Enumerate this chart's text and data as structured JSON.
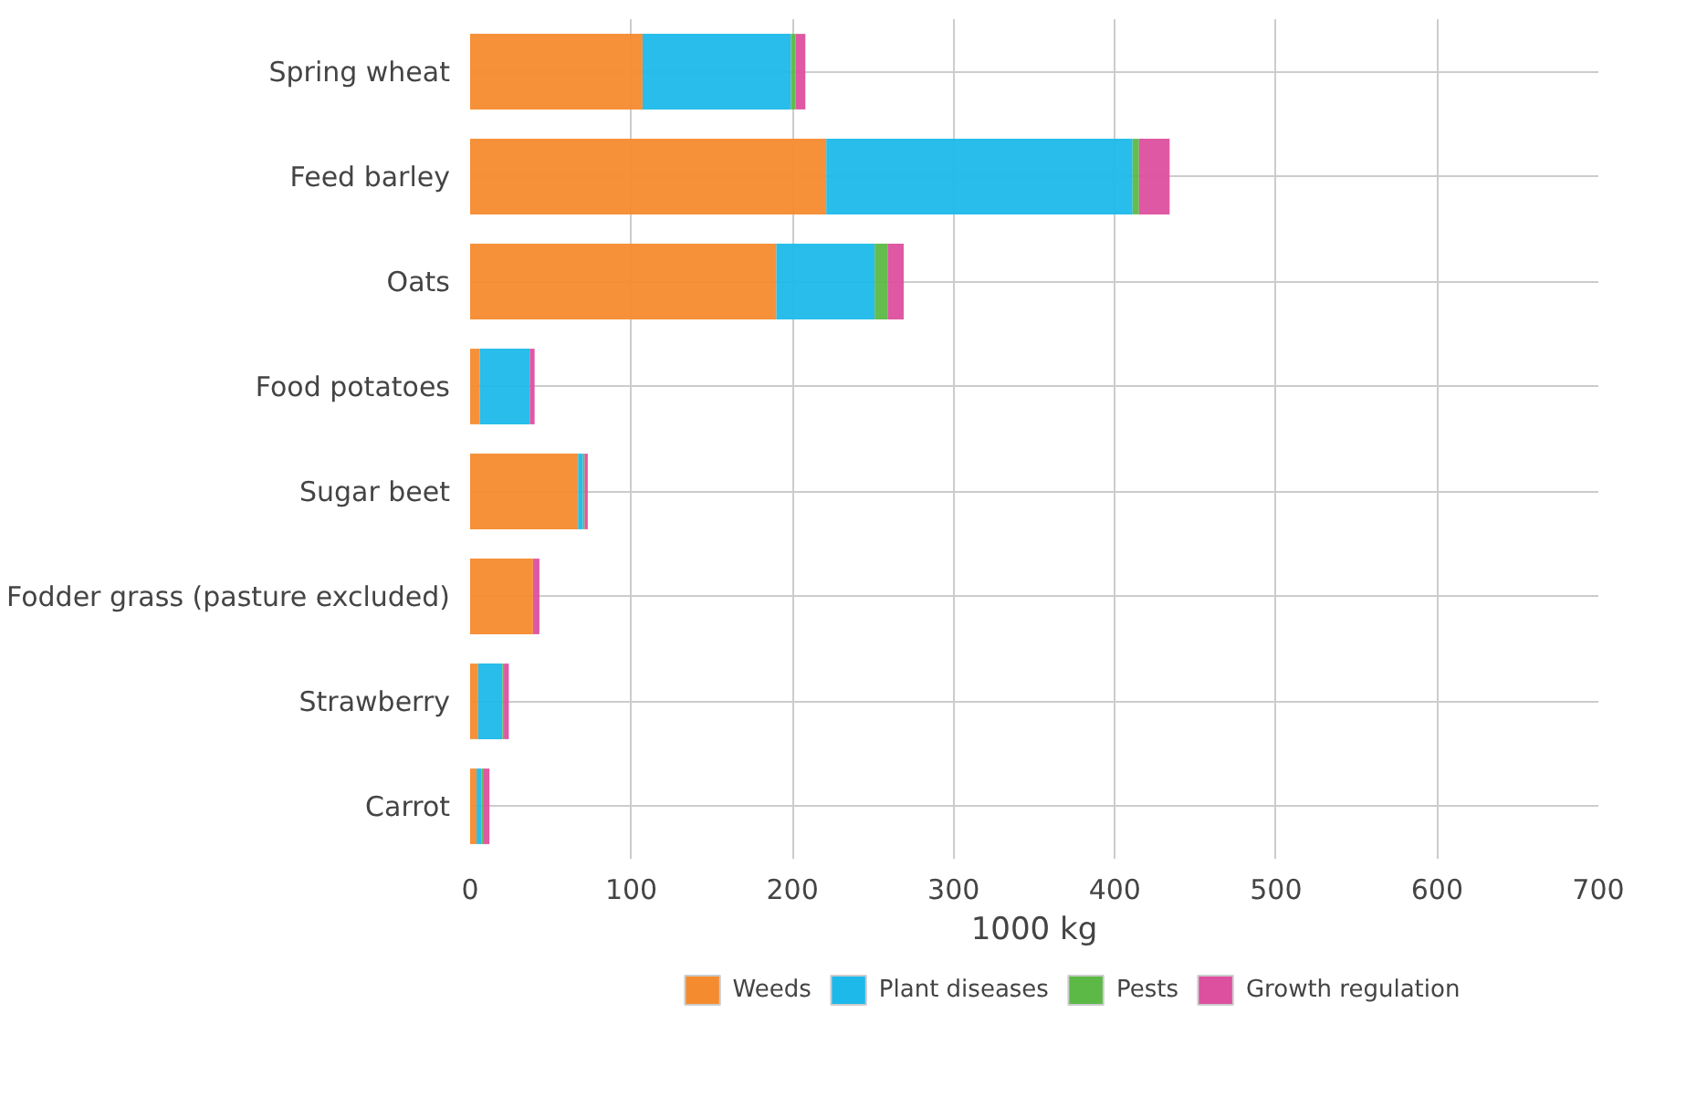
{
  "chart_data": {
    "type": "bar",
    "orientation": "horizontal",
    "stacked": true,
    "categories": [
      "Spring wheat",
      "Feed barley",
      "Oats",
      "Food potatoes",
      "Sugar beet",
      "Fodder grass (pasture excluded)",
      "Strawberry",
      "Carrot"
    ],
    "series": [
      {
        "name": "Weeds",
        "color": "#f58b2f",
        "values": [
          107,
          221,
          190,
          6,
          67,
          39,
          5,
          4
        ]
      },
      {
        "name": "Plant diseases",
        "color": "#1cb9ea",
        "values": [
          92,
          190,
          61,
          31,
          3,
          0,
          15,
          3
        ]
      },
      {
        "name": "Pests",
        "color": "#5cb946",
        "values": [
          3,
          4,
          8,
          0,
          1,
          0,
          1,
          1
        ]
      },
      {
        "name": "Growth regulation",
        "color": "#dd4f9f",
        "values": [
          6,
          19,
          10,
          3,
          2,
          4,
          3,
          4
        ]
      }
    ],
    "xlabel": "1000 kg",
    "xlim": [
      0,
      700
    ],
    "xticks": [
      0,
      100,
      200,
      300,
      400,
      500,
      600,
      700
    ],
    "grid": true,
    "legend": "bottom"
  }
}
